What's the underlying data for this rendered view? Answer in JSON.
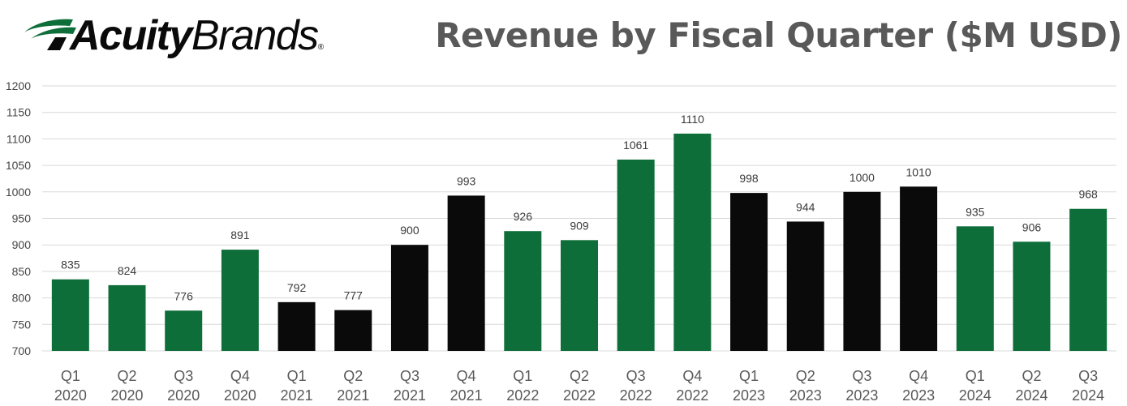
{
  "header": {
    "logo_bold": "Acuity",
    "logo_regular": "Brands",
    "logo_mark": "®"
  },
  "colors": {
    "green": "#0e6e3a",
    "black": "#0b0a0b",
    "grid": "#d9d9d9",
    "title": "#595959"
  },
  "chart_data": {
    "type": "bar",
    "title": "Revenue by Fiscal Quarter ($M USD)",
    "xlabel": "",
    "ylabel": "",
    "ylim": [
      700,
      1200
    ],
    "yticks": [
      700,
      750,
      800,
      850,
      900,
      950,
      1000,
      1050,
      1100,
      1150,
      1200
    ],
    "grid": true,
    "legend": "none",
    "categories": [
      {
        "q": "Q1",
        "year": "2020"
      },
      {
        "q": "Q2",
        "year": "2020"
      },
      {
        "q": "Q3",
        "year": "2020"
      },
      {
        "q": "Q4",
        "year": "2020"
      },
      {
        "q": "Q1",
        "year": "2021"
      },
      {
        "q": "Q2",
        "year": "2021"
      },
      {
        "q": "Q3",
        "year": "2021"
      },
      {
        "q": "Q4",
        "year": "2021"
      },
      {
        "q": "Q1",
        "year": "2022"
      },
      {
        "q": "Q2",
        "year": "2022"
      },
      {
        "q": "Q3",
        "year": "2022"
      },
      {
        "q": "Q4",
        "year": "2022"
      },
      {
        "q": "Q1",
        "year": "2023"
      },
      {
        "q": "Q2",
        "year": "2023"
      },
      {
        "q": "Q3",
        "year": "2023"
      },
      {
        "q": "Q4",
        "year": "2023"
      },
      {
        "q": "Q1",
        "year": "2024"
      },
      {
        "q": "Q2",
        "year": "2024"
      },
      {
        "q": "Q3",
        "year": "2024"
      }
    ],
    "values": [
      835,
      824,
      776,
      891,
      792,
      777,
      900,
      993,
      926,
      909,
      1061,
      1110,
      998,
      944,
      1000,
      1010,
      935,
      906,
      968
    ],
    "bar_colors": [
      "green",
      "green",
      "green",
      "green",
      "black",
      "black",
      "black",
      "black",
      "green",
      "green",
      "green",
      "green",
      "black",
      "black",
      "black",
      "black",
      "green",
      "green",
      "green"
    ]
  }
}
